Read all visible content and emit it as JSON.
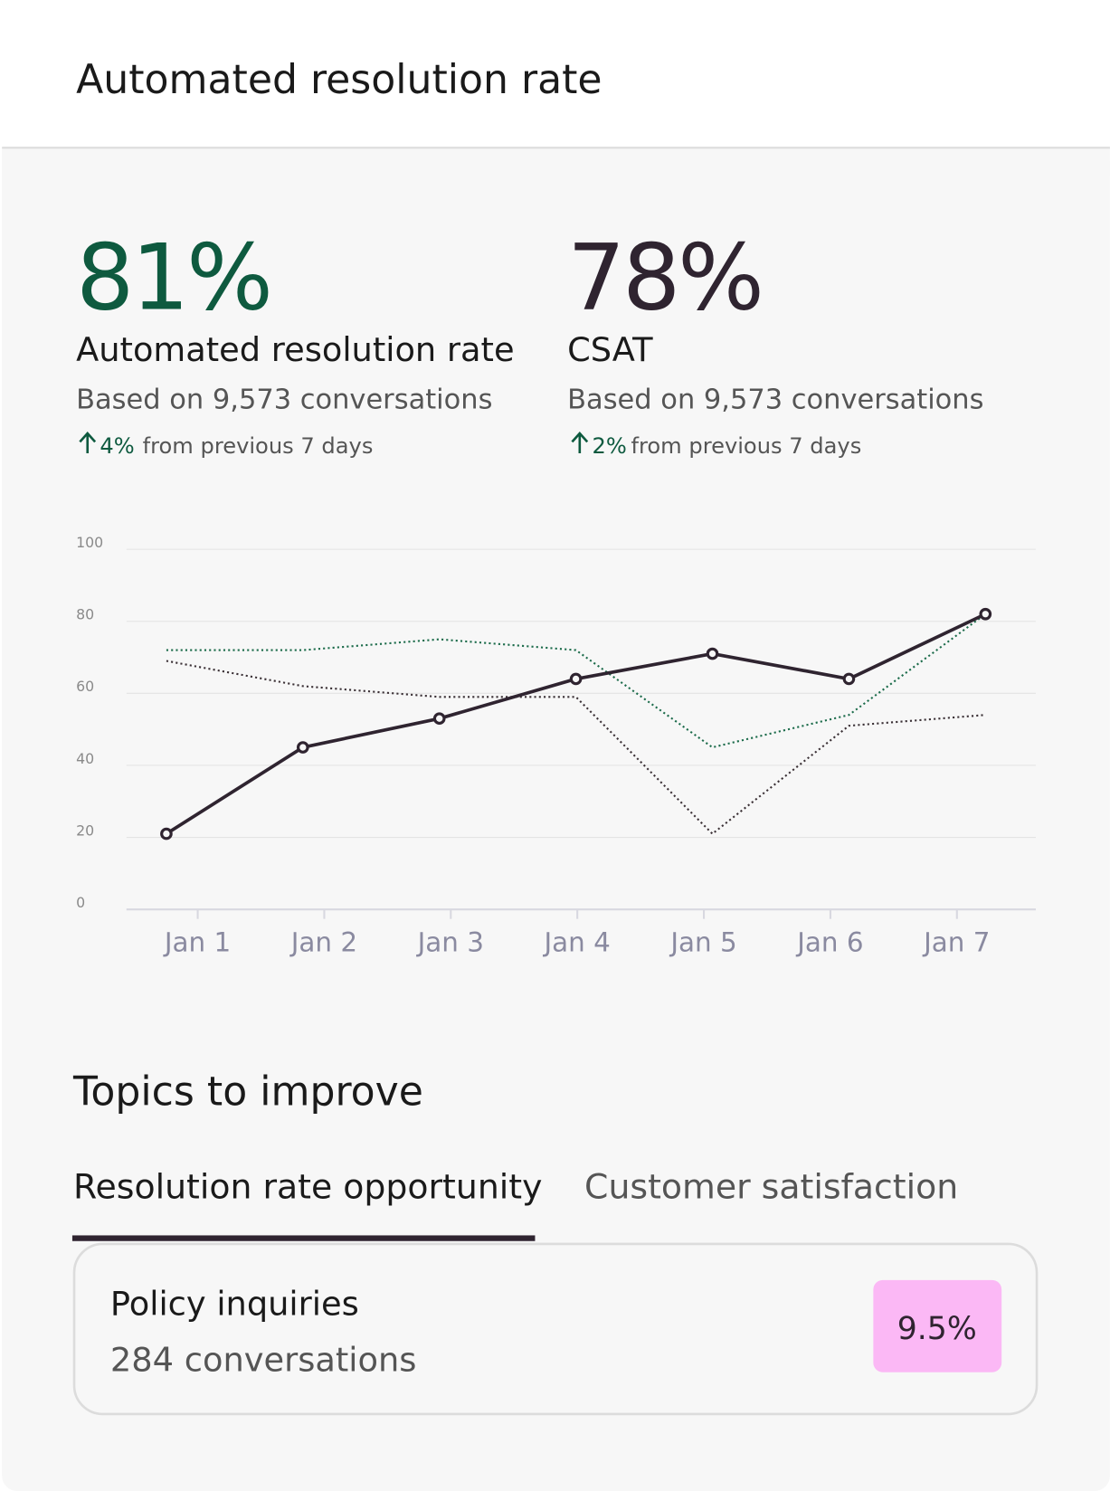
{
  "header": {
    "title": "Automated resolution rate"
  },
  "metrics": [
    {
      "value": "81%",
      "label": "Automated resolution rate",
      "basis": "Based on 9,573 conversations",
      "change": "4%",
      "change_text": "from previous 7 days"
    },
    {
      "value": "78%",
      "label": "CSAT",
      "basis": "Based on 9,573 conversations",
      "change": "2%",
      "change_text": "from previous 7 days"
    }
  ],
  "chart_data": {
    "type": "line",
    "categories": [
      "Jan 1",
      "Jan 2",
      "Jan 3",
      "Jan 4",
      "Jan 5",
      "Jan 6",
      "Jan 7"
    ],
    "series": [
      {
        "color": "#2f2430",
        "style": "solid",
        "markers": true,
        "values": [
          21,
          45,
          53,
          64,
          71,
          64,
          82
        ]
      },
      {
        "color": "#1b6b4a",
        "style": "dotted",
        "markers": false,
        "values": [
          72,
          72,
          75,
          72,
          45,
          54,
          82
        ]
      },
      {
        "color": "#3a3035",
        "style": "dotted",
        "markers": false,
        "values": [
          69,
          62,
          59,
          59,
          21,
          51,
          54
        ]
      }
    ],
    "ylim": [
      0,
      100
    ],
    "yticks": [
      0,
      20,
      40,
      60,
      80,
      100
    ],
    "grid": true
  },
  "topics": {
    "title": "Topics to improve",
    "tabs": [
      "Resolution rate opportunity",
      "Customer satisfaction"
    ],
    "items": [
      {
        "name": "Policy inquiries",
        "count": "284 conversations",
        "rate": "9.5%"
      }
    ]
  }
}
